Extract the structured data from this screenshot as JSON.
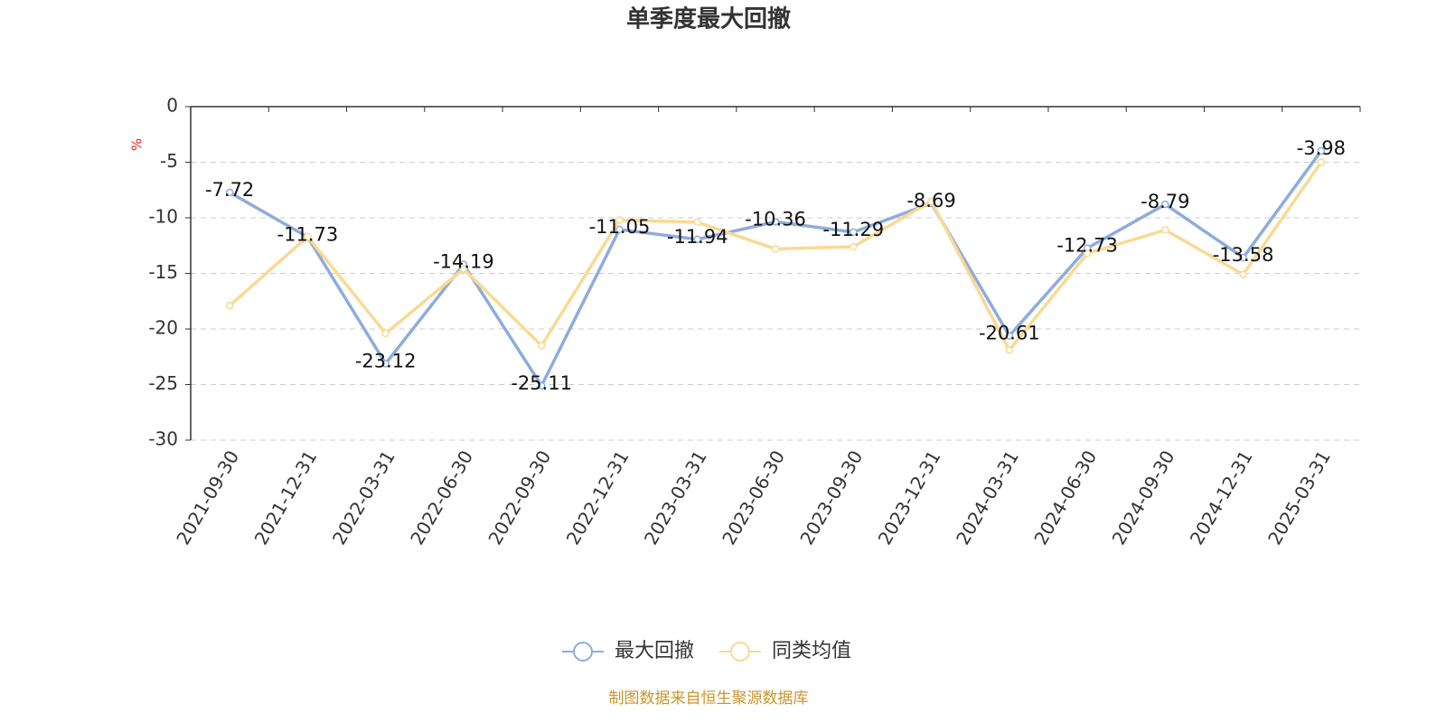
{
  "chart_data": {
    "type": "line",
    "title": "单季度最大回撤",
    "y_label": "%",
    "source": "制图数据来自恒生聚源数据库",
    "categories": [
      "2021-09-30",
      "2021-12-31",
      "2022-03-31",
      "2022-06-30",
      "2022-09-30",
      "2022-12-31",
      "2023-03-31",
      "2023-06-30",
      "2023-09-30",
      "2023-12-31",
      "2024-03-31",
      "2024-06-30",
      "2024-09-30",
      "2024-12-31",
      "2025-03-31"
    ],
    "series": [
      {
        "name": "最大回撤",
        "color": "#8eacdc",
        "data_labels": true,
        "values": [
          -7.72,
          -11.73,
          -23.12,
          -14.19,
          -25.11,
          -11.05,
          -11.94,
          -10.36,
          -11.29,
          -8.69,
          -20.61,
          -12.73,
          -8.79,
          -13.58,
          -3.98
        ]
      },
      {
        "name": "同类均值",
        "color": "#fad993",
        "data_labels": false,
        "values": [
          -17.9,
          -11.7,
          -20.4,
          -14.6,
          -21.5,
          -10.2,
          -10.4,
          -12.8,
          -12.6,
          -8.5,
          -21.9,
          -13.2,
          -11.1,
          -15.1,
          -5.0
        ]
      }
    ],
    "ylim": [
      -30,
      0
    ],
    "yticks": [
      0,
      -5,
      -10,
      -15,
      -20,
      -25,
      -30
    ],
    "grid": true,
    "legend": "bottom"
  }
}
